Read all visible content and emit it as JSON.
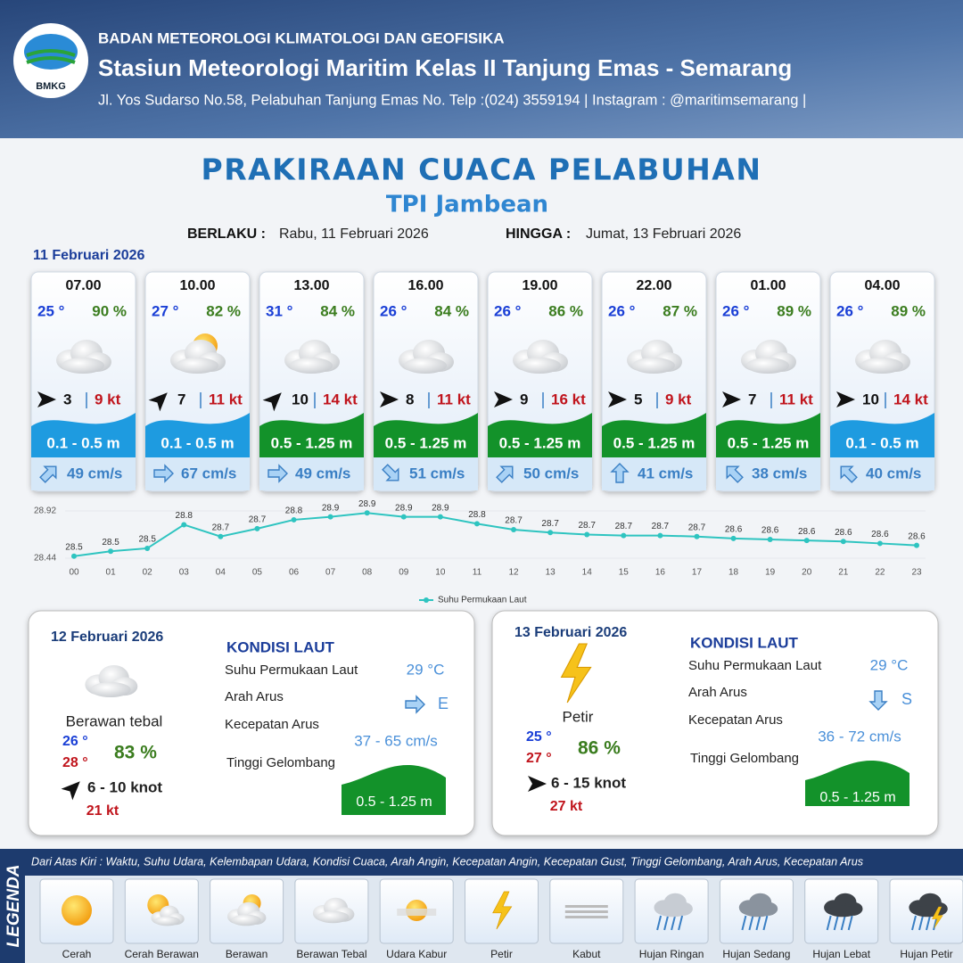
{
  "header": {
    "logo": "BMKG",
    "org": "BADAN METEOROLOGI KLIMATOLOGI DAN GEOFISIKA",
    "station": "Stasiun Meteorologi Maritim Kelas II Tanjung Emas - Semarang",
    "address": "Jl. Yos Sudarso No.58, Pelabuhan Tanjung Emas No. Telp :(024) 3559194 | Instagram : @maritimsemarang |"
  },
  "title": "PRAKIRAAN CUACA PELABUHAN",
  "location": "TPI Jambean",
  "validity": {
    "from_label": "BERLAKU :",
    "from": "Rabu, 11 Februari 2026",
    "to_label": "HINGGA :",
    "to": "Jumat, 13 Februari 2026"
  },
  "today": {
    "date": "11 Februari 2026",
    "cards": [
      {
        "time": "07.00",
        "temp": "25 °",
        "humidity": "90 %",
        "wind": "3",
        "gust": "9 kt",
        "wave": "0.1 - 0.5 m",
        "wave_color": "#1e9be0",
        "current": "49 cm/s"
      },
      {
        "time": "10.00",
        "temp": "27 °",
        "humidity": "82 %",
        "wind": "7",
        "gust": "11 kt",
        "wave": "0.1 - 0.5 m",
        "wave_color": "#1e9be0",
        "current": "67 cm/s"
      },
      {
        "time": "13.00",
        "temp": "31 °",
        "humidity": "84 %",
        "wind": "10",
        "gust": "14 kt",
        "wave": "0.5 - 1.25 m",
        "wave_color": "#13922a",
        "current": "49 cm/s"
      },
      {
        "time": "16.00",
        "temp": "26 °",
        "humidity": "84 %",
        "wind": "8",
        "gust": "11 kt",
        "wave": "0.5 - 1.25 m",
        "wave_color": "#13922a",
        "current": "51 cm/s"
      },
      {
        "time": "19.00",
        "temp": "26 °",
        "humidity": "86 %",
        "wind": "9",
        "gust": "16 kt",
        "wave": "0.5 - 1.25 m",
        "wave_color": "#13922a",
        "current": "50 cm/s"
      },
      {
        "time": "22.00",
        "temp": "26 °",
        "humidity": "87 %",
        "wind": "5",
        "gust": "9 kt",
        "wave": "0.5 - 1.25 m",
        "wave_color": "#13922a",
        "current": "41 cm/s"
      },
      {
        "time": "01.00",
        "temp": "26 °",
        "humidity": "89 %",
        "wind": "7",
        "gust": "11 kt",
        "wave": "0.5 - 1.25 m",
        "wave_color": "#13922a",
        "current": "38 cm/s"
      },
      {
        "time": "04.00",
        "temp": "26 °",
        "humidity": "89 %",
        "wind": "10",
        "gust": "14 kt",
        "wave": "0.1 - 0.5 m",
        "wave_color": "#1e9be0",
        "current": "40 cm/s"
      }
    ]
  },
  "chart_data": {
    "type": "line",
    "x": [
      "00",
      "01",
      "02",
      "03",
      "04",
      "05",
      "06",
      "07",
      "08",
      "09",
      "10",
      "11",
      "12",
      "13",
      "14",
      "15",
      "16",
      "17",
      "18",
      "19",
      "20",
      "21",
      "22",
      "23"
    ],
    "series": [
      {
        "name": "Suhu Permukaan Laut",
        "color": "#2ec4c0",
        "values": [
          28.46,
          28.51,
          28.54,
          28.78,
          28.66,
          28.74,
          28.83,
          28.86,
          28.9,
          28.86,
          28.86,
          28.79,
          28.73,
          28.7,
          28.68,
          28.67,
          28.67,
          28.66,
          28.64,
          28.63,
          28.62,
          28.61,
          28.59,
          28.57
        ],
        "value_labels": [
          "28.5",
          "28.5",
          "28.5",
          "28.8",
          "28.7",
          "28.7",
          "28.8",
          "28.9",
          "28.9",
          "28.9",
          "28.9",
          "28.8",
          "28.7",
          "28.7",
          "28.7",
          "28.7",
          "28.7",
          "28.7",
          "28.6",
          "28.6",
          "28.6",
          "28.6",
          "28.6",
          "28.6"
        ]
      }
    ],
    "ylim": [
      28.44,
      28.92
    ],
    "yticks": [
      28.44,
      28.92
    ]
  },
  "forecast_days": [
    {
      "date": "12 Februari 2026",
      "weather": "Berawan tebal",
      "temp_min": "26 °",
      "temp_max": "28 °",
      "humidity": "83 %",
      "wind": "6 - 10 knot",
      "gust": "21 kt",
      "sea": {
        "title": "KONDISI LAUT",
        "sst_label": "Suhu Permukaan Laut",
        "sst": "29 °C",
        "dir_label": "Arah Arus",
        "dir": "E",
        "speed_label": "Kecepatan Arus",
        "speed": "37 - 65 cm/s",
        "wave_label": "Tinggi Gelombang",
        "wave": "0.5 - 1.25 m"
      }
    },
    {
      "date": "13 Februari 2026",
      "weather": "Petir",
      "temp_min": "25 °",
      "temp_max": "27 °",
      "humidity": "86 %",
      "wind": "6 - 15 knot",
      "gust": "27 kt",
      "sea": {
        "title": "KONDISI LAUT",
        "sst_label": "Suhu Permukaan Laut",
        "sst": "29 °C",
        "dir_label": "Arah Arus",
        "dir": "S",
        "speed_label": "Kecepatan Arus",
        "speed": "36 - 72 cm/s",
        "wave_label": "Tinggi Gelombang",
        "wave": "0.5 - 1.25 m"
      }
    }
  ],
  "legend": {
    "title": "LEGENDA",
    "description": "Dari Atas Kiri : Waktu, Suhu Udara, Kelembapan Udara, Kondisi Cuaca, Arah Angin, Kecepatan Angin, Kecepatan Gust, Tinggi Gelombang, Arah Arus, Kecepatan Arus",
    "items": [
      "Cerah",
      "Cerah Berawan",
      "Berawan",
      "Berawan Tebal",
      "Udara Kabur",
      "Petir",
      "Kabut",
      "Hujan Ringan",
      "Hujan Sedang",
      "Hujan Lebat",
      "Hujan Petir"
    ]
  }
}
